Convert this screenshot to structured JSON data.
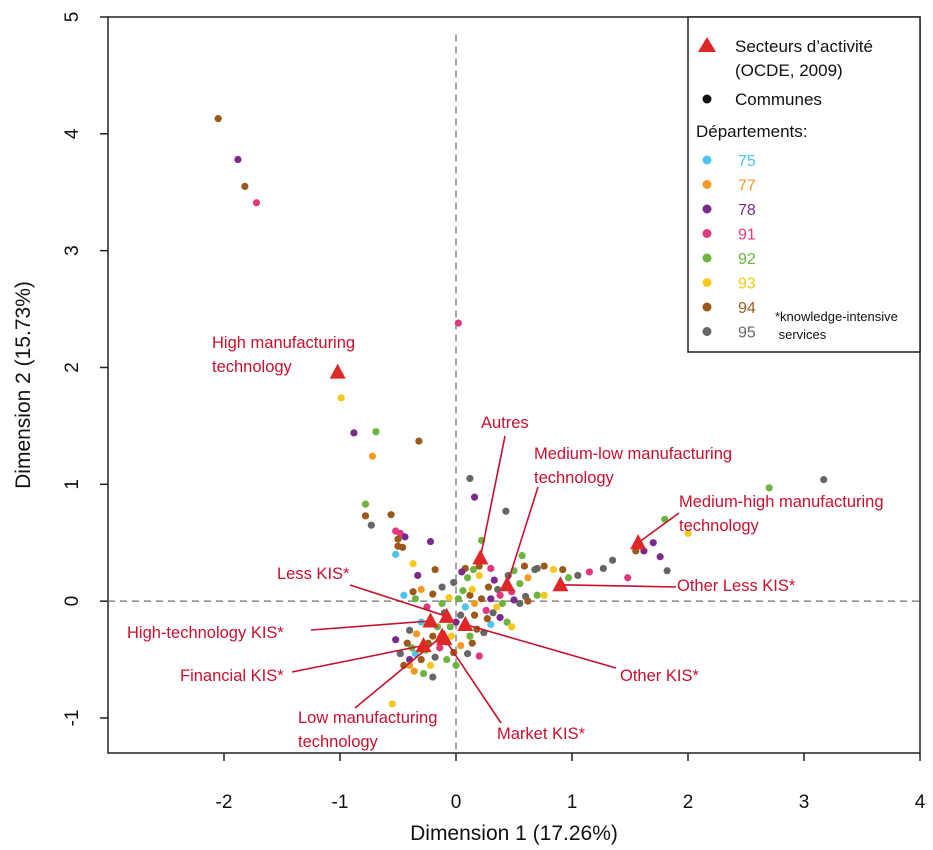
{
  "chart_data": {
    "type": "scatter",
    "xlabel": "Dimension 1 (17.26%)",
    "ylabel": "Dimension 2 (15.73%)",
    "xlim": [
      -3.0,
      4.0
    ],
    "ylim": [
      -1.3,
      5.0
    ],
    "x_ticks": [
      -2,
      -1,
      0,
      1,
      2,
      3,
      4
    ],
    "y_ticks": [
      -1,
      0,
      1,
      2,
      3,
      4,
      5
    ],
    "reference_lines": {
      "x": 0,
      "y": 0,
      "style": "dashed"
    },
    "sectors": [
      {
        "name": "High manufacturing technology",
        "x": -1.02,
        "y": 1.96,
        "label_lines": [
          "High manufacturing",
          "technology"
        ]
      },
      {
        "name": "Autres",
        "x": 0.21,
        "y": 0.37,
        "label_lines": [
          "Autres"
        ]
      },
      {
        "name": "Medium-low manufacturing technology",
        "x": 0.44,
        "y": 0.14,
        "label_lines": [
          "Medium-low manufacturing",
          "technology"
        ]
      },
      {
        "name": "Medium-high manufacturing technology",
        "x": 1.57,
        "y": 0.5,
        "label_lines": [
          "Medium-high manufacturing",
          "technology"
        ]
      },
      {
        "name": "Other Less KIS*",
        "x": 0.9,
        "y": 0.14,
        "label_lines": [
          "Other Less KIS*"
        ]
      },
      {
        "name": "Less KIS*",
        "x": -0.08,
        "y": -0.13,
        "label_lines": [
          "Less KIS*"
        ]
      },
      {
        "name": "High-technology KIS*",
        "x": -0.22,
        "y": -0.17,
        "label_lines": [
          "High-technology KIS*"
        ]
      },
      {
        "name": "Other KIS*",
        "x": 0.08,
        "y": -0.2,
        "label_lines": [
          "Other KIS*"
        ]
      },
      {
        "name": "Financial KIS*",
        "x": -0.28,
        "y": -0.38,
        "label_lines": [
          "Financial KIS*"
        ]
      },
      {
        "name": "Low manufacturing technology",
        "x": -0.12,
        "y": -0.3,
        "label_lines": [
          "Low manufacturing",
          "technology"
        ]
      },
      {
        "name": "Market KIS*",
        "x": -0.1,
        "y": -0.32,
        "label_lines": [
          "Market KIS*"
        ]
      }
    ],
    "communes": [
      {
        "dept": "94",
        "x": -2.05,
        "y": 4.13
      },
      {
        "dept": "78",
        "x": -1.88,
        "y": 3.78
      },
      {
        "dept": "94",
        "x": -1.82,
        "y": 3.55
      },
      {
        "dept": "91",
        "x": -1.72,
        "y": 3.41
      },
      {
        "dept": "91",
        "x": 0.02,
        "y": 2.38
      },
      {
        "dept": "93",
        "x": -0.99,
        "y": 1.74
      },
      {
        "dept": "78",
        "x": -0.88,
        "y": 1.44
      },
      {
        "dept": "92",
        "x": -0.69,
        "y": 1.45
      },
      {
        "dept": "77",
        "x": -0.72,
        "y": 1.24
      },
      {
        "dept": "94",
        "x": -0.32,
        "y": 1.37
      },
      {
        "dept": "95",
        "x": 0.12,
        "y": 1.05
      },
      {
        "dept": "78",
        "x": 0.16,
        "y": 0.89
      },
      {
        "dept": "95",
        "x": 0.43,
        "y": 0.77
      },
      {
        "dept": "92",
        "x": -0.78,
        "y": 0.83
      },
      {
        "dept": "94",
        "x": -0.78,
        "y": 0.73
      },
      {
        "dept": "95",
        "x": -0.73,
        "y": 0.65
      },
      {
        "dept": "94",
        "x": -0.56,
        "y": 0.74
      },
      {
        "dept": "91",
        "x": -0.52,
        "y": 0.6
      },
      {
        "dept": "91",
        "x": -0.48,
        "y": 0.58
      },
      {
        "dept": "78",
        "x": -0.44,
        "y": 0.55
      },
      {
        "dept": "94",
        "x": -0.46,
        "y": 0.46
      },
      {
        "dept": "94",
        "x": -0.5,
        "y": 0.53
      },
      {
        "dept": "94",
        "x": -0.5,
        "y": 0.47
      },
      {
        "dept": "78",
        "x": -0.22,
        "y": 0.51
      },
      {
        "dept": "92",
        "x": 0.22,
        "y": 0.52
      },
      {
        "dept": "75",
        "x": -0.52,
        "y": 0.4
      },
      {
        "dept": "93",
        "x": -0.37,
        "y": 0.32
      },
      {
        "dept": "78",
        "x": -0.33,
        "y": 0.22
      },
      {
        "dept": "94",
        "x": -0.18,
        "y": 0.27
      },
      {
        "dept": "94",
        "x": 0.08,
        "y": 0.28
      },
      {
        "dept": "92",
        "x": 0.15,
        "y": 0.27
      },
      {
        "dept": "93",
        "x": 0.2,
        "y": 0.22
      },
      {
        "dept": "91",
        "x": 0.3,
        "y": 0.28
      },
      {
        "dept": "78",
        "x": 0.33,
        "y": 0.18
      },
      {
        "dept": "92",
        "x": 0.5,
        "y": 0.26
      },
      {
        "dept": "95",
        "x": 0.7,
        "y": 0.28
      },
      {
        "dept": "94",
        "x": 0.76,
        "y": 0.3
      },
      {
        "dept": "93",
        "x": 0.84,
        "y": 0.27
      },
      {
        "dept": "93",
        "x": 0.76,
        "y": 0.05
      },
      {
        "dept": "94",
        "x": 0.59,
        "y": 0.3
      },
      {
        "dept": "92",
        "x": 0.57,
        "y": 0.39
      },
      {
        "dept": "95",
        "x": 0.68,
        "y": 0.27
      },
      {
        "dept": "92",
        "x": 0.97,
        "y": 0.2
      },
      {
        "dept": "91",
        "x": 1.15,
        "y": 0.25
      },
      {
        "dept": "95",
        "x": 1.27,
        "y": 0.28
      },
      {
        "dept": "95",
        "x": 1.35,
        "y": 0.35
      },
      {
        "dept": "95",
        "x": 1.05,
        "y": 0.22
      },
      {
        "dept": "94",
        "x": 0.92,
        "y": 0.27
      },
      {
        "dept": "91",
        "x": 1.48,
        "y": 0.2
      },
      {
        "dept": "94",
        "x": 1.55,
        "y": 0.43
      },
      {
        "dept": "78",
        "x": 1.62,
        "y": 0.43
      },
      {
        "dept": "78",
        "x": 1.7,
        "y": 0.5
      },
      {
        "dept": "78",
        "x": 1.76,
        "y": 0.38
      },
      {
        "dept": "92",
        "x": 1.8,
        "y": 0.7
      },
      {
        "dept": "95",
        "x": 1.82,
        "y": 0.26
      },
      {
        "dept": "93",
        "x": 2.0,
        "y": 0.58
      },
      {
        "dept": "92",
        "x": 2.7,
        "y": 0.97
      },
      {
        "dept": "95",
        "x": 3.17,
        "y": 1.04
      },
      {
        "dept": "95",
        "x": -0.02,
        "y": 0.16
      },
      {
        "dept": "92",
        "x": 0.06,
        "y": 0.09
      },
      {
        "dept": "94",
        "x": 0.12,
        "y": 0.05
      },
      {
        "dept": "78",
        "x": 0.3,
        "y": 0.02
      },
      {
        "dept": "95",
        "x": 0.36,
        "y": 0.1
      },
      {
        "dept": "92",
        "x": 0.4,
        "y": -0.02
      },
      {
        "dept": "91",
        "x": 0.48,
        "y": 0.08
      },
      {
        "dept": "95",
        "x": 0.6,
        "y": 0.04
      },
      {
        "dept": "94",
        "x": 0.62,
        "y": 0.0
      },
      {
        "dept": "95",
        "x": 0.55,
        "y": -0.02
      },
      {
        "dept": "78",
        "x": 0.5,
        "y": 0.01
      },
      {
        "dept": "92",
        "x": 0.7,
        "y": 0.05
      },
      {
        "dept": "75",
        "x": -0.45,
        "y": 0.05
      },
      {
        "dept": "94",
        "x": -0.37,
        "y": 0.08
      },
      {
        "dept": "92",
        "x": -0.35,
        "y": 0.02
      },
      {
        "dept": "77",
        "x": -0.3,
        "y": 0.1
      },
      {
        "dept": "94",
        "x": -0.2,
        "y": 0.06
      },
      {
        "dept": "95",
        "x": -0.12,
        "y": 0.12
      },
      {
        "dept": "93",
        "x": -0.06,
        "y": 0.03
      },
      {
        "dept": "92",
        "x": 0.02,
        "y": 0.02
      },
      {
        "dept": "75",
        "x": 0.08,
        "y": -0.05
      },
      {
        "dept": "77",
        "x": 0.16,
        "y": -0.02
      },
      {
        "dept": "94",
        "x": 0.22,
        "y": 0.02
      },
      {
        "dept": "91",
        "x": 0.26,
        "y": -0.08
      },
      {
        "dept": "95",
        "x": 0.32,
        "y": -0.1
      },
      {
        "dept": "78",
        "x": 0.38,
        "y": -0.14
      },
      {
        "dept": "92",
        "x": 0.44,
        "y": -0.18
      },
      {
        "dept": "93",
        "x": 0.48,
        "y": -0.22
      },
      {
        "dept": "75",
        "x": 0.3,
        "y": -0.2
      },
      {
        "dept": "95",
        "x": 0.24,
        "y": -0.27
      },
      {
        "dept": "94",
        "x": 0.18,
        "y": -0.24
      },
      {
        "dept": "92",
        "x": 0.12,
        "y": -0.3
      },
      {
        "dept": "77",
        "x": 0.06,
        "y": -0.22
      },
      {
        "dept": "78",
        "x": 0.0,
        "y": -0.18
      },
      {
        "dept": "93",
        "x": -0.04,
        "y": -0.3
      },
      {
        "dept": "95",
        "x": -0.1,
        "y": -0.1
      },
      {
        "dept": "92",
        "x": -0.16,
        "y": -0.22
      },
      {
        "dept": "94",
        "x": -0.2,
        "y": -0.3
      },
      {
        "dept": "91",
        "x": -0.25,
        "y": -0.05
      },
      {
        "dept": "75",
        "x": -0.3,
        "y": -0.18
      },
      {
        "dept": "77",
        "x": -0.34,
        "y": -0.28
      },
      {
        "dept": "92",
        "x": -0.38,
        "y": -0.4
      },
      {
        "dept": "94",
        "x": -0.42,
        "y": -0.36
      },
      {
        "dept": "95",
        "x": -0.48,
        "y": -0.45
      },
      {
        "dept": "78",
        "x": -0.4,
        "y": -0.5
      },
      {
        "dept": "77",
        "x": -0.36,
        "y": -0.6
      },
      {
        "dept": "94",
        "x": -0.3,
        "y": -0.5
      },
      {
        "dept": "92",
        "x": -0.26,
        "y": -0.42
      },
      {
        "dept": "93",
        "x": -0.22,
        "y": -0.55
      },
      {
        "dept": "95",
        "x": -0.18,
        "y": -0.48
      },
      {
        "dept": "91",
        "x": -0.14,
        "y": -0.4
      },
      {
        "dept": "92",
        "x": -0.08,
        "y": -0.5
      },
      {
        "dept": "94",
        "x": -0.02,
        "y": -0.44
      },
      {
        "dept": "77",
        "x": 0.04,
        "y": -0.38
      },
      {
        "dept": "95",
        "x": 0.1,
        "y": -0.45
      },
      {
        "dept": "91",
        "x": 0.2,
        "y": -0.47
      },
      {
        "dept": "93",
        "x": -0.55,
        "y": -0.88
      },
      {
        "dept": "95",
        "x": -0.2,
        "y": -0.65
      },
      {
        "dept": "94",
        "x": -0.45,
        "y": -0.55
      },
      {
        "dept": "78",
        "x": -0.52,
        "y": -0.33
      },
      {
        "dept": "92",
        "x": -0.28,
        "y": -0.62
      },
      {
        "dept": "75",
        "x": -0.35,
        "y": -0.45
      },
      {
        "dept": "94",
        "x": 0.16,
        "y": -0.12
      },
      {
        "dept": "92",
        "x": -0.12,
        "y": -0.02
      },
      {
        "dept": "95",
        "x": 0.04,
        "y": -0.12
      },
      {
        "dept": "93",
        "x": 0.14,
        "y": 0.1
      },
      {
        "dept": "94",
        "x": 0.28,
        "y": 0.12
      },
      {
        "dept": "92",
        "x": 0.1,
        "y": 0.2
      },
      {
        "dept": "78",
        "x": 0.05,
        "y": 0.25
      },
      {
        "dept": "94",
        "x": 0.2,
        "y": 0.3
      },
      {
        "dept": "91",
        "x": 0.38,
        "y": 0.05
      },
      {
        "dept": "77",
        "x": 0.62,
        "y": 0.2
      },
      {
        "dept": "92",
        "x": 0.55,
        "y": 0.15
      },
      {
        "dept": "95",
        "x": 0.45,
        "y": 0.22
      },
      {
        "dept": "93",
        "x": 0.35,
        "y": -0.05
      },
      {
        "dept": "94",
        "x": 0.27,
        "y": -0.15
      },
      {
        "dept": "92",
        "x": -0.05,
        "y": -0.22
      },
      {
        "dept": "95",
        "x": -0.4,
        "y": -0.25
      },
      {
        "dept": "91",
        "x": -0.08,
        "y": -0.35
      },
      {
        "dept": "94",
        "x": -0.24,
        "y": -0.36
      },
      {
        "dept": "92",
        "x": 0.0,
        "y": -0.55
      },
      {
        "dept": "93",
        "x": -0.3,
        "y": -0.42
      },
      {
        "dept": "77",
        "x": -0.4,
        "y": -0.55
      },
      {
        "dept": "94",
        "x": 0.14,
        "y": -0.36
      }
    ],
    "legend": {
      "position": "top-right",
      "sector_entry": [
        "Secteurs d’activité",
        "(OCDE, 2009)"
      ],
      "commune_entry": "Communes",
      "departments_title": "Départements:",
      "departments": [
        {
          "code": "75",
          "color": "#4FC3F0"
        },
        {
          "code": "77",
          "color": "#F39A24"
        },
        {
          "code": "78",
          "color": "#7B2A8C"
        },
        {
          "code": "91",
          "color": "#E2377E"
        },
        {
          "code": "92",
          "color": "#6CB33F"
        },
        {
          "code": "93",
          "color": "#F6C81E"
        },
        {
          "code": "94",
          "color": "#9B5A1A"
        },
        {
          "code": "95",
          "color": "#666666"
        }
      ],
      "note": [
        "*knowledge-intensive",
        " services"
      ]
    },
    "colors": {
      "sector_marker": "#e02727",
      "sector_label": "#c8102e",
      "reference_line": "#888888"
    }
  }
}
